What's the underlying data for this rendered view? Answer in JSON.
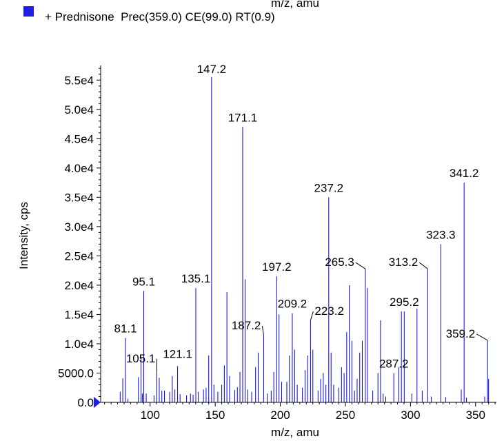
{
  "top_cut_label": "m/z, amu",
  "legend": {
    "color": "#1f1fe6",
    "text": "+ Prednisone  Prec(359.0) CE(99.0) RT(0.9)"
  },
  "chart_data": {
    "type": "bar",
    "subtype": "mass-spectrum-stick",
    "xlabel": "m/z, amu",
    "ylabel": "Intensity, cps",
    "xlim": [
      62,
      366
    ],
    "ylim": [
      0,
      57500
    ],
    "xticks": [
      100,
      150,
      200,
      250,
      300,
      350
    ],
    "xtick_labels": [
      "100",
      "150",
      "200",
      "250",
      "300",
      "350"
    ],
    "yticks": [
      0,
      5000,
      10000,
      15000,
      20000,
      25000,
      30000,
      35000,
      40000,
      45000,
      50000,
      55000
    ],
    "ytick_labels": [
      "0.0",
      "5000.0",
      "1.0e4",
      "1.5e4",
      "2.0e4",
      "2.5e4",
      "3.0e4",
      "3.5e4",
      "4.0e4",
      "4.5e4",
      "5.0e4",
      "5.5e4"
    ],
    "series_color": "#0000ee",
    "peaks": [
      {
        "mz": 77,
        "i": 1800
      },
      {
        "mz": 79,
        "i": 4100
      },
      {
        "mz": 81.1,
        "i": 11000,
        "label": "81.1"
      },
      {
        "mz": 83,
        "i": 600
      },
      {
        "mz": 91,
        "i": 4300
      },
      {
        "mz": 93,
        "i": 7800
      },
      {
        "mz": 94,
        "i": 1500
      },
      {
        "mz": 95.1,
        "i": 19000,
        "label": "95.1"
      },
      {
        "mz": 97,
        "i": 1500
      },
      {
        "mz": 103,
        "i": 1200
      },
      {
        "mz": 105.1,
        "i": 5200,
        "label": "105.1"
      },
      {
        "mz": 107,
        "i": 4200
      },
      {
        "mz": 109,
        "i": 2000
      },
      {
        "mz": 111,
        "i": 2000
      },
      {
        "mz": 115,
        "i": 1800
      },
      {
        "mz": 117,
        "i": 4500
      },
      {
        "mz": 119,
        "i": 2200
      },
      {
        "mz": 121.1,
        "i": 6200,
        "label": "121.1"
      },
      {
        "mz": 123,
        "i": 1400
      },
      {
        "mz": 128,
        "i": 1200
      },
      {
        "mz": 131,
        "i": 1500
      },
      {
        "mz": 133,
        "i": 1300
      },
      {
        "mz": 135.1,
        "i": 19500,
        "label": "135.1"
      },
      {
        "mz": 137,
        "i": 1800
      },
      {
        "mz": 141,
        "i": 2200
      },
      {
        "mz": 143,
        "i": 2500
      },
      {
        "mz": 145,
        "i": 8000
      },
      {
        "mz": 147.2,
        "i": 55500,
        "label": "147.2"
      },
      {
        "mz": 149,
        "i": 3000
      },
      {
        "mz": 152,
        "i": 1800
      },
      {
        "mz": 155,
        "i": 3000
      },
      {
        "mz": 157,
        "i": 6300
      },
      {
        "mz": 159,
        "i": 18800
      },
      {
        "mz": 161,
        "i": 4500
      },
      {
        "mz": 165,
        "i": 2100
      },
      {
        "mz": 167,
        "i": 2600
      },
      {
        "mz": 169,
        "i": 5200
      },
      {
        "mz": 171.1,
        "i": 47000,
        "label": "171.1"
      },
      {
        "mz": 173,
        "i": 21000
      },
      {
        "mz": 175,
        "i": 2200
      },
      {
        "mz": 178,
        "i": 1800
      },
      {
        "mz": 181,
        "i": 6000
      },
      {
        "mz": 183,
        "i": 8500
      },
      {
        "mz": 187.2,
        "i": 11500,
        "label": "187.2"
      },
      {
        "mz": 190,
        "i": 1500
      },
      {
        "mz": 193,
        "i": 2000
      },
      {
        "mz": 195,
        "i": 5200
      },
      {
        "mz": 197.2,
        "i": 21500,
        "label": "197.2"
      },
      {
        "mz": 199,
        "i": 15000
      },
      {
        "mz": 201,
        "i": 3500
      },
      {
        "mz": 205,
        "i": 3500
      },
      {
        "mz": 207,
        "i": 8000
      },
      {
        "mz": 209.2,
        "i": 15200,
        "label": "209.2"
      },
      {
        "mz": 211,
        "i": 9000
      },
      {
        "mz": 213,
        "i": 3000
      },
      {
        "mz": 217,
        "i": 2500
      },
      {
        "mz": 219,
        "i": 5500
      },
      {
        "mz": 221,
        "i": 8000
      },
      {
        "mz": 223.2,
        "i": 14000,
        "label": "223.2"
      },
      {
        "mz": 225,
        "i": 9000
      },
      {
        "mz": 229,
        "i": 2000
      },
      {
        "mz": 231,
        "i": 4000
      },
      {
        "mz": 233,
        "i": 5000
      },
      {
        "mz": 235,
        "i": 3000
      },
      {
        "mz": 237.2,
        "i": 35000,
        "label": "237.2"
      },
      {
        "mz": 239,
        "i": 8500
      },
      {
        "mz": 241,
        "i": 3000
      },
      {
        "mz": 245,
        "i": 2500
      },
      {
        "mz": 247,
        "i": 6000
      },
      {
        "mz": 249,
        "i": 5000
      },
      {
        "mz": 251,
        "i": 12000
      },
      {
        "mz": 253,
        "i": 20000
      },
      {
        "mz": 255,
        "i": 10500
      },
      {
        "mz": 257,
        "i": 2000
      },
      {
        "mz": 259,
        "i": 4000
      },
      {
        "mz": 261,
        "i": 8500
      },
      {
        "mz": 263,
        "i": 10500
      },
      {
        "mz": 265.3,
        "i": 22800,
        "label": "265.3"
      },
      {
        "mz": 267,
        "i": 19500
      },
      {
        "mz": 271,
        "i": 2000
      },
      {
        "mz": 275,
        "i": 5000
      },
      {
        "mz": 277,
        "i": 14000
      },
      {
        "mz": 279,
        "i": 1500
      },
      {
        "mz": 281,
        "i": 1000
      },
      {
        "mz": 287.2,
        "i": 5000,
        "label": "287.2"
      },
      {
        "mz": 291,
        "i": 6000
      },
      {
        "mz": 293,
        "i": 15500
      },
      {
        "mz": 295.2,
        "i": 15500,
        "label": "295.2"
      },
      {
        "mz": 301,
        "i": 1500
      },
      {
        "mz": 305,
        "i": 16000
      },
      {
        "mz": 309,
        "i": 2000
      },
      {
        "mz": 313.2,
        "i": 22800,
        "label": "313.2"
      },
      {
        "mz": 316,
        "i": 1000
      },
      {
        "mz": 323.3,
        "i": 27000,
        "label": "323.3"
      },
      {
        "mz": 327,
        "i": 900
      },
      {
        "mz": 339,
        "i": 2200
      },
      {
        "mz": 341.2,
        "i": 37500,
        "label": "341.2"
      },
      {
        "mz": 343,
        "i": 800
      },
      {
        "mz": 357,
        "i": 1000
      },
      {
        "mz": 359.2,
        "i": 10600,
        "label": "359.2"
      },
      {
        "mz": 360,
        "i": 4000
      }
    ]
  }
}
